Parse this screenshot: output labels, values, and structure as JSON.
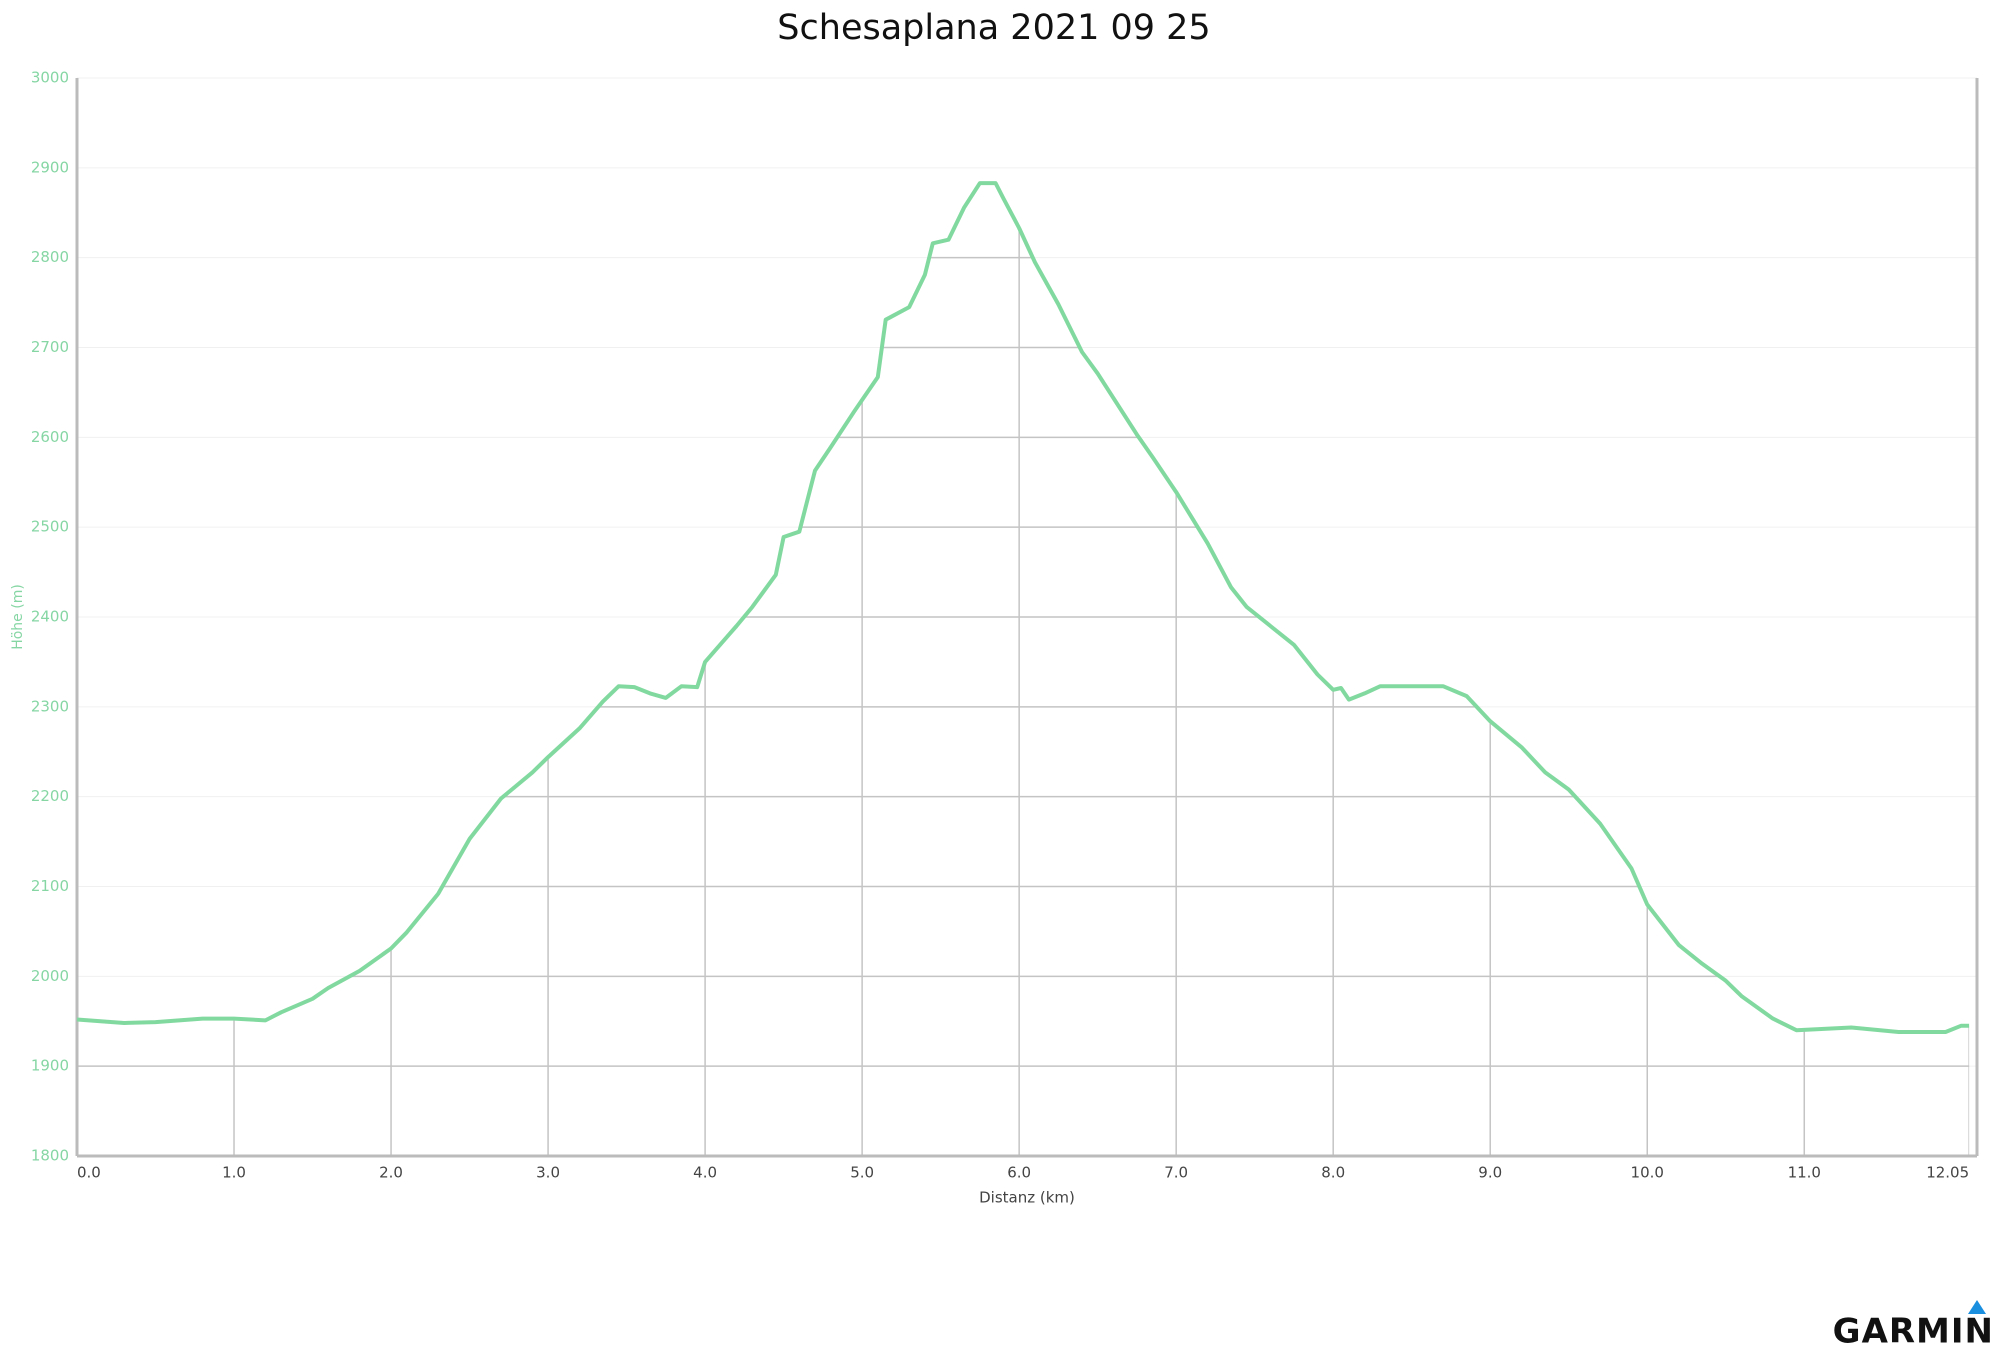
{
  "chart_data": {
    "type": "line",
    "title": "Schesaplana 2021 09 25",
    "x_label": "Distanz (km)",
    "y_label": "Höhe (m)",
    "logo": "GARMIN",
    "series": [
      {
        "name": "Höhe",
        "color": "#82d9a0",
        "x": [
          0.0,
          0.3,
          0.5,
          0.8,
          1.0,
          1.2,
          1.3,
          1.5,
          1.6,
          1.8,
          2.0,
          2.1,
          2.3,
          2.5,
          2.7,
          2.9,
          3.0,
          3.2,
          3.35,
          3.45,
          3.55,
          3.65,
          3.75,
          3.85,
          3.95,
          4.0,
          4.2,
          4.3,
          4.45,
          4.5,
          4.6,
          4.7,
          4.8,
          4.95,
          5.1,
          5.15,
          5.3,
          5.4,
          5.45,
          5.55,
          5.65,
          5.75,
          5.85,
          5.9,
          6.0,
          6.1,
          6.25,
          6.4,
          6.5,
          6.75,
          6.85,
          7.0,
          7.2,
          7.35,
          7.45,
          7.6,
          7.75,
          7.9,
          8.0,
          8.05,
          8.1,
          8.2,
          8.3,
          8.7,
          8.85,
          9.0,
          9.2,
          9.35,
          9.5,
          9.7,
          9.9,
          10.0,
          10.2,
          10.35,
          10.5,
          10.6,
          10.8,
          10.95,
          11.3,
          11.6,
          11.9,
          12.0,
          12.05
        ],
        "values": [
          1952,
          1948,
          1949,
          1953,
          1953,
          1951,
          1960,
          1975,
          1987,
          2006,
          2031,
          2049,
          2092,
          2153,
          2198,
          2227,
          2244,
          2276,
          2306,
          2323,
          2322,
          2315,
          2310,
          2323,
          2322,
          2350,
          2390,
          2411,
          2447,
          2489,
          2495,
          2563,
          2589,
          2629,
          2667,
          2731,
          2745,
          2781,
          2816,
          2820,
          2856,
          2883,
          2883,
          2866,
          2833,
          2795,
          2748,
          2695,
          2671,
          2603,
          2578,
          2539,
          2482,
          2433,
          2411,
          2390,
          2369,
          2336,
          2319,
          2321,
          2308,
          2315,
          2323,
          2323,
          2312,
          2284,
          2255,
          2227,
          2208,
          2170,
          2120,
          2080,
          2035,
          2014,
          1995,
          1978,
          1953,
          1940,
          1943,
          1938,
          1938,
          1945,
          1945
        ]
      }
    ],
    "xlim": [
      0,
      12.1
    ],
    "ylim": [
      1800,
      3000
    ],
    "xticks": [
      {
        "value": 0,
        "label": "0.0"
      },
      {
        "value": 1,
        "label": "1.0"
      },
      {
        "value": 2,
        "label": "2.0"
      },
      {
        "value": 3,
        "label": "3.0"
      },
      {
        "value": 4,
        "label": "4.0"
      },
      {
        "value": 5,
        "label": "5.0"
      },
      {
        "value": 6,
        "label": "6.0"
      },
      {
        "value": 7,
        "label": "7.0"
      },
      {
        "value": 8,
        "label": "8.0"
      },
      {
        "value": 9,
        "label": "9.0"
      },
      {
        "value": 10,
        "label": "10.0"
      },
      {
        "value": 11,
        "label": "11.0"
      },
      {
        "value": 12.05,
        "label": "12.05"
      }
    ],
    "yticks": [
      1800,
      1900,
      2000,
      2100,
      2200,
      2300,
      2400,
      2500,
      2600,
      2700,
      2800,
      2900,
      3000
    ],
    "grid": true
  }
}
